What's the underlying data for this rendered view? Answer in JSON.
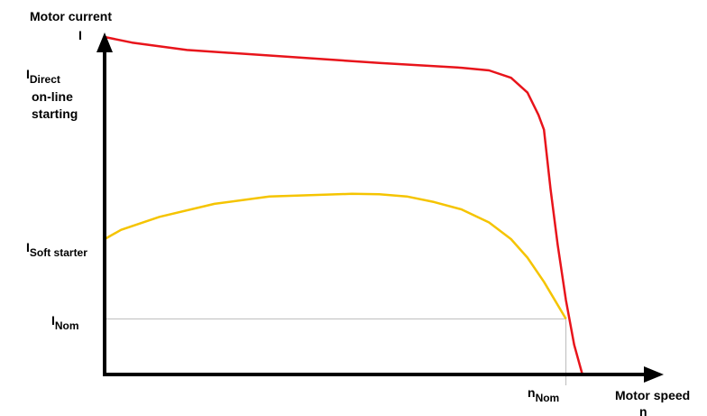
{
  "chart_data": {
    "type": "line",
    "title": "",
    "ylabel": "Motor current",
    "ylabel_symbol": "I",
    "xlabel": "Motor speed",
    "xlabel_symbol": "n",
    "y_markers": {
      "direct": {
        "base": "I",
        "sub": "Direct",
        "lines": [
          "on-line",
          "starting"
        ]
      },
      "soft": {
        "base": "I",
        "sub": "Soft starter"
      },
      "nom": {
        "base": "I",
        "sub": "Nom"
      }
    },
    "x_markers": {
      "nom": {
        "base": "n",
        "sub": "Nom"
      }
    },
    "xlim": [
      0,
      1.0
    ],
    "ylim": [
      0,
      1.0
    ],
    "grid": false,
    "series": [
      {
        "key": "direct",
        "color": "#e8141b",
        "x": [
          0,
          0.05,
          0.15,
          0.3,
          0.5,
          0.65,
          0.7,
          0.74,
          0.77,
          0.79,
          0.8,
          0.812,
          0.825,
          0.84,
          0.855,
          0.87
        ],
        "y": [
          0.91,
          0.895,
          0.875,
          0.86,
          0.84,
          0.827,
          0.82,
          0.8,
          0.76,
          0.7,
          0.66,
          0.5,
          0.35,
          0.2,
          0.08,
          0.0
        ]
      },
      {
        "key": "soft",
        "color": "#f5c400",
        "x": [
          0,
          0.03,
          0.1,
          0.2,
          0.3,
          0.4,
          0.45,
          0.5,
          0.55,
          0.6,
          0.65,
          0.7,
          0.74,
          0.77,
          0.8,
          0.82,
          0.84
        ],
        "y": [
          0.365,
          0.39,
          0.425,
          0.46,
          0.48,
          0.485,
          0.487,
          0.486,
          0.48,
          0.465,
          0.445,
          0.41,
          0.365,
          0.315,
          0.25,
          0.2,
          0.15
        ]
      }
    ],
    "reference_lines": {
      "y_nom": 0.15,
      "x_nom": 0.84
    }
  }
}
